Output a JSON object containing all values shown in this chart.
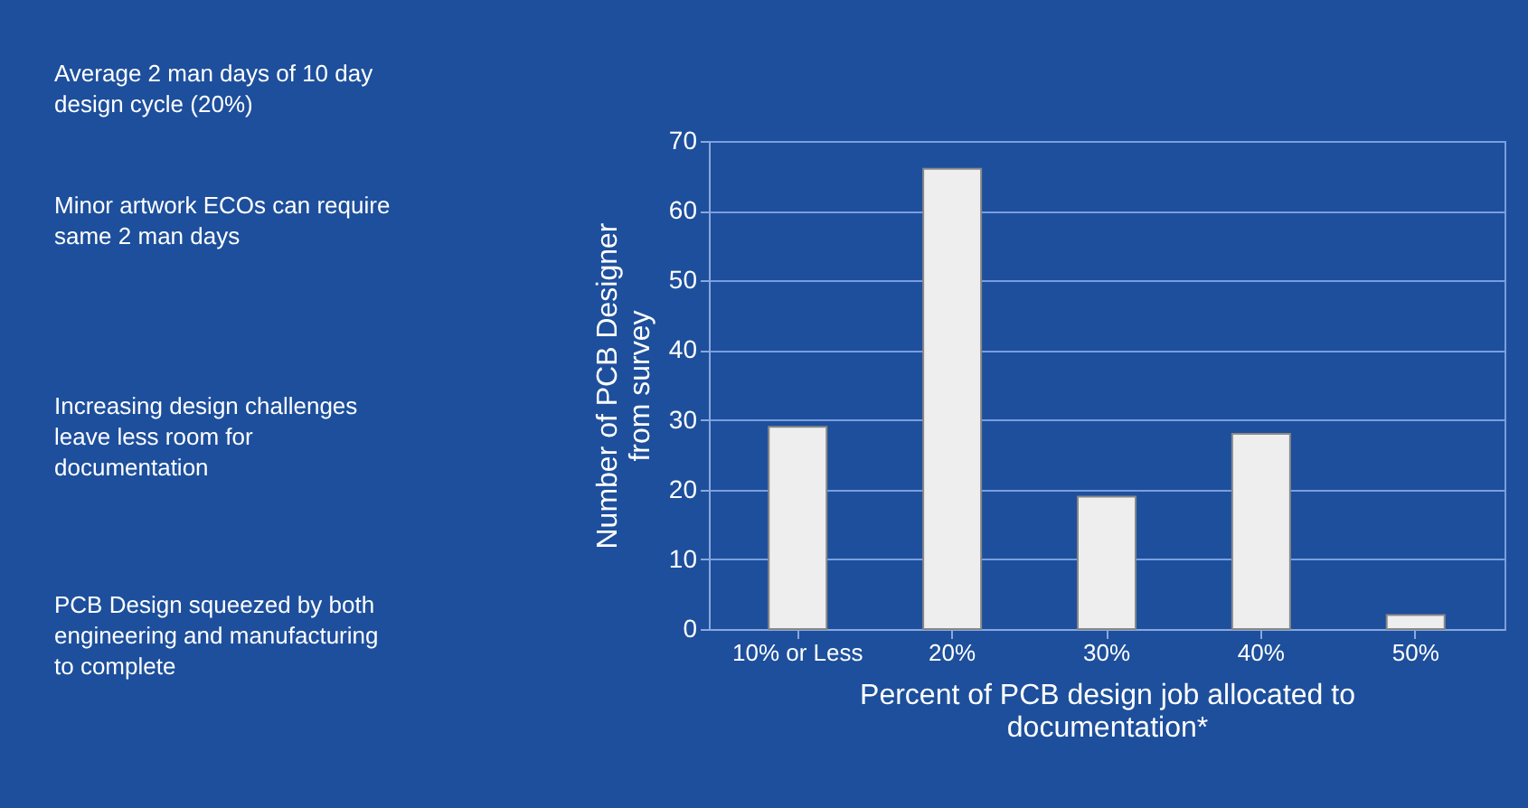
{
  "chart_data": {
    "type": "bar",
    "xlabel": "Percent of PCB design job allocated to documentation*",
    "ylabel": "Number of PCB Designer from survey",
    "categories": [
      "10% or Less",
      "20%",
      "30%",
      "40%",
      "50%"
    ],
    "values": [
      29,
      66,
      19,
      28,
      2
    ],
    "color": "#eeeeee",
    "ylim": [
      0,
      70
    ],
    "yticks": [
      0,
      10,
      20,
      30,
      40,
      50,
      60,
      70
    ],
    "grid": "y",
    "annotations": [
      "Average 2 man days of 10 day design cycle (20%)",
      "Minor artwork ECOs can require same 2 man days",
      "Increasing design challenges leave less room for documentation",
      "PCB Design squeezed by both engineering and manufacturing to complete"
    ]
  }
}
